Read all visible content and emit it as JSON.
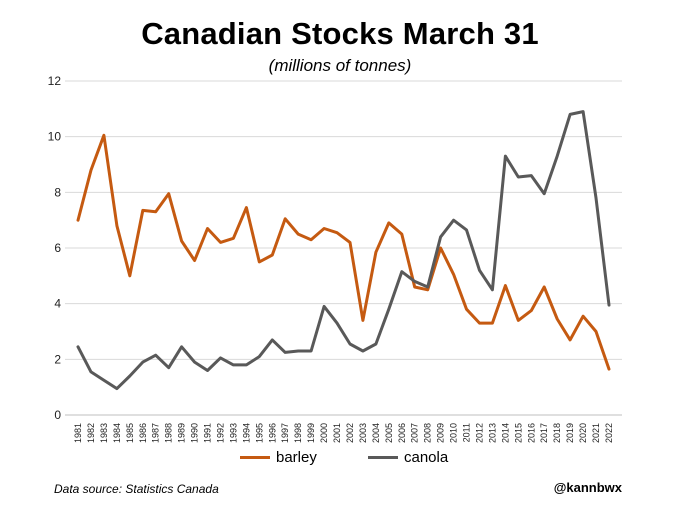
{
  "chart_data": {
    "type": "line",
    "title": "Canadian Stocks March 31",
    "subtitle": "(millions of tonnes)",
    "xlabel": "",
    "ylabel": "",
    "ylim": [
      0,
      12
    ],
    "yticks": [
      0,
      2,
      4,
      6,
      8,
      10,
      12
    ],
    "grid": "horizontal",
    "legend_position": "bottom",
    "categories": [
      "1981",
      "1982",
      "1983",
      "1984",
      "1985",
      "1986",
      "1987",
      "1988",
      "1989",
      "1990",
      "1991",
      "1992",
      "1993",
      "1994",
      "1995",
      "1996",
      "1997",
      "1998",
      "1999",
      "2000",
      "2001",
      "2002",
      "2003",
      "2004",
      "2005",
      "2006",
      "2007",
      "2008",
      "2009",
      "2010",
      "2011",
      "2012",
      "2013",
      "2014",
      "2015",
      "2016",
      "2017",
      "2018",
      "2019",
      "2020",
      "2021",
      "2022"
    ],
    "series": [
      {
        "name": "barley",
        "color": "#C55A11",
        "values": [
          7.0,
          8.8,
          10.05,
          6.8,
          5.0,
          7.35,
          7.3,
          7.95,
          6.25,
          5.55,
          6.7,
          6.2,
          6.35,
          7.45,
          5.5,
          5.75,
          7.05,
          6.5,
          6.3,
          6.7,
          6.55,
          6.2,
          3.4,
          5.85,
          6.9,
          6.5,
          4.6,
          4.5,
          6.0,
          5.05,
          3.8,
          3.3,
          3.3,
          4.65,
          3.4,
          3.75,
          4.6,
          3.45,
          2.7,
          3.55,
          3.0,
          1.65
        ]
      },
      {
        "name": "canola",
        "color": "#595959",
        "values": [
          2.45,
          1.55,
          1.25,
          0.95,
          1.4,
          1.9,
          2.15,
          1.7,
          2.45,
          1.9,
          1.6,
          2.05,
          1.8,
          1.8,
          2.1,
          2.7,
          2.25,
          2.3,
          2.3,
          3.9,
          3.3,
          2.55,
          2.3,
          2.55,
          3.8,
          5.15,
          4.8,
          4.6,
          6.4,
          7.0,
          6.65,
          5.2,
          4.5,
          9.3,
          8.55,
          8.6,
          7.95,
          9.3,
          10.8,
          10.9,
          7.8,
          3.95
        ]
      }
    ]
  },
  "footer": {
    "source": "Data source: Statistics Canada",
    "handle": "@kannbwx"
  }
}
